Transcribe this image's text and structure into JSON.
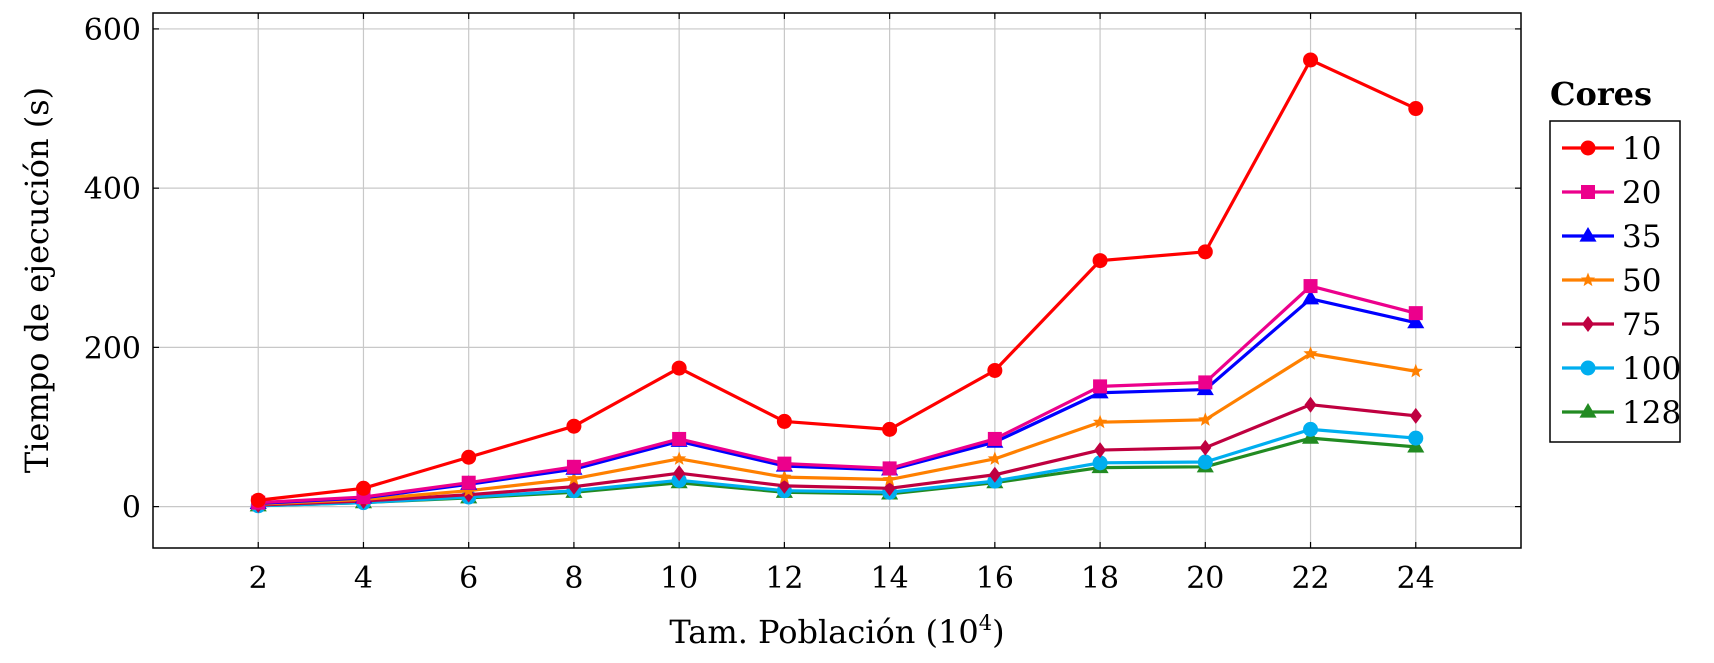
{
  "chart_data": {
    "type": "line",
    "title": "",
    "xlabel": "Tam. Población (10",
    "xlabel_sup": "4",
    "xlabel_end": ")",
    "ylabel": "Tiempo de ejecución (s)",
    "x": [
      2,
      4,
      6,
      8,
      10,
      12,
      14,
      16,
      18,
      20,
      22,
      24
    ],
    "xticks": [
      "2",
      "4",
      "6",
      "8",
      "10",
      "12",
      "14",
      "16",
      "18",
      "20",
      "22",
      "24"
    ],
    "yticks": [
      "0",
      "200",
      "400",
      "600"
    ],
    "xlim": [
      0,
      26
    ],
    "ylim": [
      -52,
      620
    ],
    "grid": true,
    "legend_title": "Cores",
    "legend_position": "right",
    "series": [
      {
        "name": "10",
        "color": "#ff0000",
        "marker": "circle",
        "values": [
          8,
          23,
          62,
          101,
          174,
          107,
          97,
          171,
          309,
          320,
          561,
          500
        ]
      },
      {
        "name": "20",
        "color": "#ec008c",
        "marker": "square",
        "values": [
          5,
          12,
          30,
          50,
          85,
          54,
          48,
          85,
          151,
          156,
          277,
          243
        ]
      },
      {
        "name": "35",
        "color": "#0000ff",
        "marker": "triangle",
        "values": [
          4,
          11,
          28,
          47,
          82,
          51,
          46,
          81,
          143,
          147,
          261,
          231
        ]
      },
      {
        "name": "50",
        "color": "#ff8000",
        "marker": "star",
        "values": [
          3,
          9,
          20,
          35,
          60,
          37,
          34,
          60,
          106,
          109,
          192,
          170
        ]
      },
      {
        "name": "75",
        "color": "#bf0040",
        "marker": "diamond",
        "values": [
          2,
          7,
          15,
          25,
          42,
          26,
          23,
          40,
          71,
          74,
          128,
          114
        ]
      },
      {
        "name": "100",
        "color": "#00aeef",
        "marker": "circle",
        "values": [
          1,
          5,
          12,
          20,
          33,
          20,
          18,
          32,
          55,
          56,
          97,
          86
        ]
      },
      {
        "name": "128",
        "color": "#228b22",
        "marker": "triangle",
        "values": [
          1,
          5,
          11,
          18,
          30,
          18,
          16,
          30,
          49,
          50,
          86,
          75
        ]
      }
    ]
  }
}
